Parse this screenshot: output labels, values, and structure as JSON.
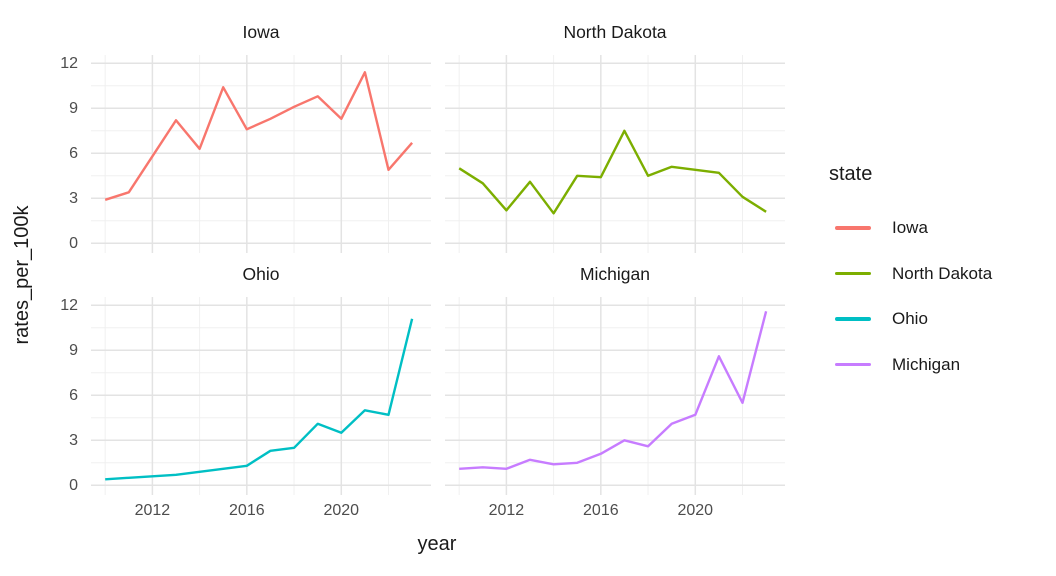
{
  "chart_data": {
    "type": "line",
    "faceted": true,
    "facets": [
      "Iowa",
      "North Dakota",
      "Ohio",
      "Michigan"
    ],
    "x": [
      2010,
      2011,
      2012,
      2013,
      2014,
      2015,
      2016,
      2017,
      2018,
      2019,
      2020,
      2021,
      2022,
      2023
    ],
    "series": [
      {
        "name": "Iowa",
        "color": "#F8766D",
        "values": [
          2.9,
          3.4,
          5.8,
          8.2,
          6.3,
          10.4,
          7.6,
          8.3,
          9.1,
          9.8,
          8.3,
          11.4,
          4.9,
          6.7
        ]
      },
      {
        "name": "North Dakota",
        "color": "#7CAE00",
        "values": [
          5.0,
          4.0,
          2.2,
          4.1,
          2.0,
          4.5,
          4.4,
          7.5,
          4.5,
          5.1,
          4.9,
          4.7,
          3.1,
          2.1
        ]
      },
      {
        "name": "Ohio",
        "color": "#00BFC4",
        "values": [
          0.4,
          0.5,
          0.6,
          0.7,
          0.9,
          1.1,
          1.3,
          2.3,
          2.5,
          4.1,
          3.5,
          5.0,
          4.7,
          11.1
        ]
      },
      {
        "name": "Michigan",
        "color": "#C77CFF",
        "values": [
          1.1,
          1.2,
          1.1,
          1.7,
          1.4,
          1.5,
          2.1,
          3.0,
          2.6,
          4.1,
          4.7,
          8.6,
          5.5,
          11.6
        ]
      }
    ],
    "title": "",
    "xlabel": "year",
    "ylabel": "rates_per_100k",
    "legend_title": "state",
    "legend_position": "right",
    "y_ticks": [
      0,
      3,
      6,
      9,
      12
    ],
    "y_grid_minor": [
      1.5,
      4.5,
      7.5,
      10.5
    ],
    "x_ticks": [
      2012,
      2016,
      2020
    ],
    "x_grid_minor": [
      2010,
      2014,
      2018,
      2022
    ],
    "xlim": [
      2009.4,
      2023.8
    ],
    "ylim": [
      -0.65,
      12.55
    ],
    "grid": true,
    "colors": {
      "grid_major": "#e3e3e3",
      "grid_minor": "#f0f0f0",
      "axis_text": "#4d4d4d",
      "title_text": "#1a1a1a",
      "background": "#ffffff"
    }
  }
}
